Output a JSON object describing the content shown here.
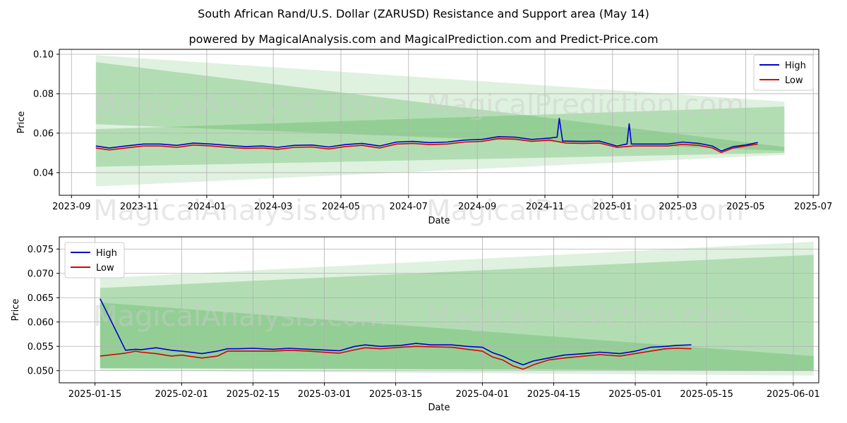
{
  "title": "South African Rand/U.S. Dollar (ZARUSD) Resistance and Support area (May 14)",
  "subtitle": "powered by MagicalAnalysis.com and MagicalPrediction.com and Predict-Price.com",
  "watermarks": [
    "MagicalAnalysis.com",
    "MagicalPrediction.com"
  ],
  "colors": {
    "high": "#0000cc",
    "low": "#dd0000",
    "band": "#4caf50"
  },
  "chart_data": [
    {
      "type": "line",
      "xlabel": "Date",
      "ylabel": "Price",
      "xlim": [
        "2023-08-21",
        "2025-07-06"
      ],
      "ylim": [
        0.0285,
        0.1025
      ],
      "xticks": [
        "2023-09",
        "2023-11",
        "2024-01",
        "2024-03",
        "2024-05",
        "2024-07",
        "2024-09",
        "2024-11",
        "2025-01",
        "2025-03",
        "2025-05",
        "2025-07"
      ],
      "xtick_dates": [
        "2023-09-01",
        "2023-11-01",
        "2024-01-01",
        "2024-03-01",
        "2024-05-01",
        "2024-07-01",
        "2024-09-01",
        "2024-11-01",
        "2025-01-01",
        "2025-03-01",
        "2025-05-01",
        "2025-07-01"
      ],
      "yticks": [
        0.04,
        0.06,
        0.08,
        0.1
      ],
      "ytick_labels": [
        "0.04",
        "0.06",
        "0.08",
        "0.10"
      ],
      "legend": "top-right",
      "bands": [
        {
          "x": [
            "2023-09-23",
            "2025-06-05"
          ],
          "upper": [
            0.0995,
            0.076
          ],
          "lower": [
            0.033,
            0.049
          ]
        },
        {
          "x": [
            "2023-09-23",
            "2025-06-05"
          ],
          "upper": [
            0.096,
            0.053
          ],
          "lower": [
            0.0645,
            0.051
          ]
        },
        {
          "x": [
            "2023-09-23",
            "2025-06-05"
          ],
          "upper": [
            0.062,
            0.0735
          ],
          "lower": [
            0.043,
            0.05
          ]
        }
      ],
      "series": [
        {
          "name": "High",
          "x": [
            "2023-09-23",
            "2023-10-05",
            "2023-10-20",
            "2023-11-05",
            "2023-11-20",
            "2023-12-05",
            "2023-12-20",
            "2024-01-05",
            "2024-01-20",
            "2024-02-05",
            "2024-02-20",
            "2024-03-05",
            "2024-03-20",
            "2024-04-05",
            "2024-04-20",
            "2024-05-05",
            "2024-05-20",
            "2024-06-05",
            "2024-06-20",
            "2024-07-05",
            "2024-07-20",
            "2024-08-05",
            "2024-08-20",
            "2024-09-05",
            "2024-09-20",
            "2024-10-05",
            "2024-10-20",
            "2024-11-05",
            "2024-11-12",
            "2024-11-14",
            "2024-11-17",
            "2024-12-05",
            "2024-12-20",
            "2025-01-05",
            "2025-01-14",
            "2025-01-16",
            "2025-01-18",
            "2025-02-05",
            "2025-02-20",
            "2025-03-05",
            "2025-03-20",
            "2025-04-01",
            "2025-04-09",
            "2025-04-20",
            "2025-05-01",
            "2025-05-12"
          ],
          "values": [
            0.0535,
            0.0525,
            0.0535,
            0.0545,
            0.0545,
            0.0538,
            0.055,
            0.0545,
            0.0538,
            0.0532,
            0.0535,
            0.0528,
            0.0538,
            0.054,
            0.053,
            0.0542,
            0.0548,
            0.0535,
            0.0555,
            0.0558,
            0.0552,
            0.0555,
            0.0565,
            0.0568,
            0.0582,
            0.058,
            0.0568,
            0.0575,
            0.058,
            0.0675,
            0.056,
            0.0558,
            0.056,
            0.0535,
            0.0545,
            0.0648,
            0.0545,
            0.0545,
            0.0545,
            0.0555,
            0.0548,
            0.0535,
            0.051,
            0.0532,
            0.054,
            0.0553
          ]
        },
        {
          "name": "Low",
          "x": [
            "2023-09-23",
            "2023-10-05",
            "2023-10-20",
            "2023-11-05",
            "2023-11-20",
            "2023-12-05",
            "2023-12-20",
            "2024-01-05",
            "2024-01-20",
            "2024-02-05",
            "2024-02-20",
            "2024-03-05",
            "2024-03-20",
            "2024-04-05",
            "2024-04-20",
            "2024-05-05",
            "2024-05-20",
            "2024-06-05",
            "2024-06-20",
            "2024-07-05",
            "2024-07-20",
            "2024-08-05",
            "2024-08-20",
            "2024-09-05",
            "2024-09-20",
            "2024-10-05",
            "2024-10-20",
            "2024-11-05",
            "2024-11-20",
            "2024-12-05",
            "2024-12-20",
            "2025-01-05",
            "2025-01-20",
            "2025-02-05",
            "2025-02-20",
            "2025-03-05",
            "2025-03-20",
            "2025-04-01",
            "2025-04-09",
            "2025-04-20",
            "2025-05-01",
            "2025-05-12"
          ],
          "values": [
            0.0525,
            0.0515,
            0.0525,
            0.0535,
            0.0535,
            0.0528,
            0.054,
            0.0535,
            0.0528,
            0.0523,
            0.0525,
            0.0518,
            0.0528,
            0.053,
            0.052,
            0.0532,
            0.0538,
            0.0525,
            0.0545,
            0.0548,
            0.0542,
            0.0545,
            0.0555,
            0.0558,
            0.0572,
            0.057,
            0.0558,
            0.0565,
            0.055,
            0.0548,
            0.055,
            0.0528,
            0.0535,
            0.0535,
            0.0535,
            0.0543,
            0.0538,
            0.0525,
            0.0502,
            0.0525,
            0.0535,
            0.0545
          ]
        }
      ]
    },
    {
      "type": "line",
      "xlabel": "Date",
      "ylabel": "Price",
      "xlim": [
        "2025-01-08",
        "2025-06-06"
      ],
      "ylim": [
        0.0475,
        0.0775
      ],
      "xticks": [
        "2025-01-15",
        "2025-02-01",
        "2025-02-15",
        "2025-03-01",
        "2025-03-15",
        "2025-04-01",
        "2025-04-15",
        "2025-05-01",
        "2025-05-15",
        "2025-06-01"
      ],
      "xtick_dates": [
        "2025-01-15",
        "2025-02-01",
        "2025-02-15",
        "2025-03-01",
        "2025-03-15",
        "2025-04-01",
        "2025-04-15",
        "2025-05-01",
        "2025-05-15",
        "2025-06-01"
      ],
      "yticks": [
        0.05,
        0.055,
        0.06,
        0.065,
        0.07,
        0.075
      ],
      "ytick_labels": [
        "0.050",
        "0.055",
        "0.060",
        "0.065",
        "0.070",
        "0.075"
      ],
      "legend": "top-left",
      "bands": [
        {
          "x": [
            "2025-01-16",
            "2025-06-05"
          ],
          "upper": [
            0.069,
            0.0765
          ],
          "lower": [
            0.05,
            0.049
          ]
        },
        {
          "x": [
            "2025-01-16",
            "2025-06-05"
          ],
          "upper": [
            0.067,
            0.0738
          ],
          "lower": [
            0.0505,
            0.05
          ]
        },
        {
          "x": [
            "2025-01-16",
            "2025-06-05"
          ],
          "upper": [
            0.064,
            0.053
          ],
          "lower": [
            0.0505,
            0.05
          ]
        }
      ],
      "series": [
        {
          "name": "High",
          "x": [
            "2025-01-16",
            "2025-01-21",
            "2025-01-23",
            "2025-01-24",
            "2025-01-27",
            "2025-01-30",
            "2025-02-01",
            "2025-02-05",
            "2025-02-08",
            "2025-02-10",
            "2025-02-12",
            "2025-02-15",
            "2025-02-19",
            "2025-02-22",
            "2025-02-26",
            "2025-03-02",
            "2025-03-04",
            "2025-03-07",
            "2025-03-09",
            "2025-03-12",
            "2025-03-16",
            "2025-03-19",
            "2025-03-22",
            "2025-03-26",
            "2025-03-29",
            "2025-04-01",
            "2025-04-03",
            "2025-04-05",
            "2025-04-07",
            "2025-04-09",
            "2025-04-11",
            "2025-04-14",
            "2025-04-17",
            "2025-04-21",
            "2025-04-24",
            "2025-04-28",
            "2025-05-01",
            "2025-05-04",
            "2025-05-07",
            "2025-05-09",
            "2025-05-12"
          ],
          "values": [
            0.0648,
            0.0542,
            0.0544,
            0.0543,
            0.0547,
            0.0542,
            0.054,
            0.0535,
            0.054,
            0.0545,
            0.0545,
            0.0546,
            0.0544,
            0.0546,
            0.0544,
            0.0542,
            0.0541,
            0.055,
            0.0553,
            0.055,
            0.0552,
            0.0556,
            0.0553,
            0.0553,
            0.055,
            0.0548,
            0.0537,
            0.053,
            0.052,
            0.0512,
            0.052,
            0.0526,
            0.0532,
            0.0535,
            0.0538,
            0.0535,
            0.054,
            0.0548,
            0.055,
            0.0552,
            0.0553
          ]
        },
        {
          "name": "Low",
          "x": [
            "2025-01-16",
            "2025-01-21",
            "2025-01-23",
            "2025-01-24",
            "2025-01-27",
            "2025-01-30",
            "2025-02-01",
            "2025-02-05",
            "2025-02-08",
            "2025-02-10",
            "2025-02-12",
            "2025-02-15",
            "2025-02-19",
            "2025-02-22",
            "2025-02-26",
            "2025-03-02",
            "2025-03-04",
            "2025-03-07",
            "2025-03-09",
            "2025-03-12",
            "2025-03-16",
            "2025-03-19",
            "2025-03-22",
            "2025-03-26",
            "2025-03-29",
            "2025-04-01",
            "2025-04-03",
            "2025-04-05",
            "2025-04-07",
            "2025-04-09",
            "2025-04-11",
            "2025-04-14",
            "2025-04-17",
            "2025-04-21",
            "2025-04-24",
            "2025-04-28",
            "2025-05-01",
            "2025-05-04",
            "2025-05-07",
            "2025-05-09",
            "2025-05-12"
          ],
          "values": [
            0.053,
            0.0536,
            0.054,
            0.0538,
            0.0535,
            0.053,
            0.0532,
            0.0526,
            0.053,
            0.054,
            0.054,
            0.054,
            0.054,
            0.0542,
            0.054,
            0.0537,
            0.0536,
            0.0543,
            0.0547,
            0.0545,
            0.0548,
            0.055,
            0.0549,
            0.0548,
            0.0544,
            0.054,
            0.0528,
            0.0522,
            0.051,
            0.0503,
            0.0512,
            0.0522,
            0.0526,
            0.053,
            0.0533,
            0.053,
            0.0535,
            0.054,
            0.0545,
            0.0546,
            0.0545
          ]
        }
      ]
    }
  ]
}
